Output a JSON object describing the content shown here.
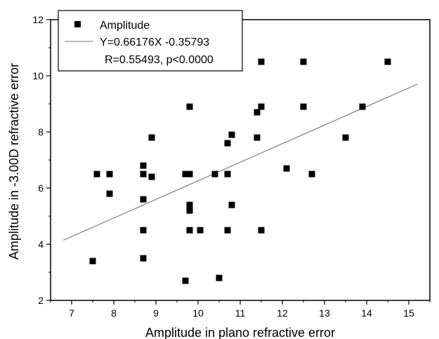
{
  "chart_data": {
    "type": "scatter",
    "xlabel": "Amplitude in plano refractive error",
    "ylabel": "Amplitude in -3.00D refractive error",
    "xlim": [
      6.5,
      15.5
    ],
    "ylim": [
      2,
      12
    ],
    "xticks": [
      7,
      8,
      9,
      10,
      11,
      12,
      13,
      14,
      15
    ],
    "yticks": [
      2,
      4,
      6,
      8,
      10,
      12
    ],
    "grid": false,
    "legend_position": "top-left",
    "series": [
      {
        "name": "Amplitude",
        "marker": "square",
        "color": "#000000",
        "points": [
          [
            7.5,
            3.4
          ],
          [
            7.6,
            6.5
          ],
          [
            7.9,
            6.5
          ],
          [
            7.9,
            5.8
          ],
          [
            8.7,
            6.8
          ],
          [
            8.7,
            6.5
          ],
          [
            8.7,
            5.6
          ],
          [
            8.7,
            4.5
          ],
          [
            8.7,
            3.5
          ],
          [
            8.9,
            6.4
          ],
          [
            8.9,
            7.8
          ],
          [
            9.7,
            6.5
          ],
          [
            9.7,
            2.7
          ],
          [
            9.8,
            8.9
          ],
          [
            9.8,
            6.5
          ],
          [
            9.8,
            5.4
          ],
          [
            9.8,
            5.2
          ],
          [
            9.8,
            4.5
          ],
          [
            10.05,
            4.5
          ],
          [
            10.4,
            6.5
          ],
          [
            10.5,
            2.8
          ],
          [
            10.7,
            7.6
          ],
          [
            10.7,
            6.5
          ],
          [
            10.7,
            4.5
          ],
          [
            10.8,
            7.9
          ],
          [
            10.8,
            5.4
          ],
          [
            11.4,
            8.7
          ],
          [
            11.4,
            7.8
          ],
          [
            11.5,
            10.5
          ],
          [
            11.5,
            8.9
          ],
          [
            11.5,
            4.5
          ],
          [
            12.1,
            6.7
          ],
          [
            12.5,
            10.5
          ],
          [
            12.5,
            8.9
          ],
          [
            12.7,
            6.5
          ],
          [
            13.5,
            7.8
          ],
          [
            13.9,
            8.9
          ],
          [
            14.5,
            10.5
          ]
        ]
      },
      {
        "name": "Y=0.66176X -0.35793",
        "type": "line",
        "color": "#666666",
        "slope": 0.66176,
        "intercept": -0.35793,
        "x_range": [
          6.8,
          15.2
        ]
      }
    ],
    "legend": {
      "marker_label": "Amplitude",
      "line_label": "Y=0.66176X -0.35793",
      "stats_label": "R=0.55493, p<0.0000"
    }
  }
}
